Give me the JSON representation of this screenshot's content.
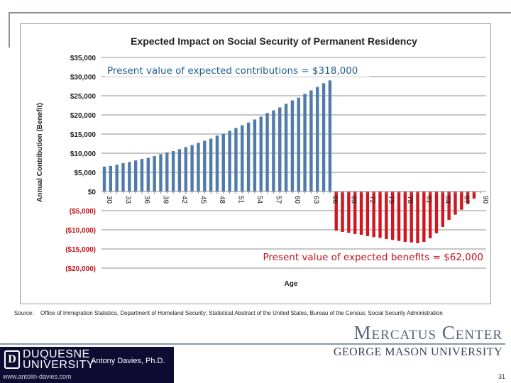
{
  "chart_data": {
    "type": "bar",
    "title": "Expected Impact on Social Security of Permanent Residency",
    "xlabel": "Age",
    "ylabel": "Annual Contribution (Benefit)",
    "ylim": [
      -20000,
      35000
    ],
    "yticks": [
      35000,
      30000,
      25000,
      20000,
      15000,
      10000,
      5000,
      0,
      -5000,
      -10000,
      -15000,
      -20000
    ],
    "ytick_labels": [
      "$35,000",
      "$30,000",
      "$25,000",
      "$20,000",
      "$15,000",
      "$10,000",
      "$5,000",
      "$0",
      "($5,000)",
      "($10,000)",
      "($15,000)",
      "($20,000)"
    ],
    "xtick_labels": [
      "30",
      "33",
      "36",
      "39",
      "42",
      "45",
      "48",
      "51",
      "54",
      "57",
      "60",
      "63",
      "66",
      "69",
      "72",
      "75",
      "78",
      "81",
      "84",
      "87",
      "90"
    ],
    "grid": true,
    "colors": {
      "contributions": "#4f7bab",
      "benefits": "#d0161e"
    },
    "series": [
      {
        "ages": [
          30,
          31,
          32,
          33,
          34,
          35,
          36,
          37,
          38,
          39,
          40,
          41,
          42,
          43,
          44,
          45,
          46,
          47,
          48,
          49,
          50,
          51,
          52,
          53,
          54,
          55,
          56,
          57,
          58,
          59,
          60,
          61,
          62,
          63,
          64,
          65,
          66
        ],
        "values": [
          6500,
          6700,
          7000,
          7400,
          7700,
          8100,
          8500,
          8800,
          9250,
          9750,
          10200,
          10550,
          11050,
          11600,
          12150,
          12700,
          13250,
          13800,
          14600,
          15100,
          15850,
          16600,
          17300,
          18000,
          18800,
          19550,
          20500,
          21200,
          21950,
          22900,
          23800,
          24500,
          25500,
          26400,
          27300,
          28250,
          29000
        ]
      },
      {
        "ages": [
          67,
          68,
          69,
          70,
          71,
          72,
          73,
          74,
          75,
          76,
          77,
          78,
          79,
          80,
          81,
          82,
          83,
          84,
          85,
          86,
          87,
          88,
          89
        ],
        "values": [
          -10200,
          -10550,
          -10800,
          -11100,
          -11300,
          -11650,
          -11900,
          -12100,
          -12400,
          -12650,
          -12900,
          -13150,
          -13300,
          -13500,
          -13150,
          -12200,
          -10900,
          -9250,
          -7400,
          -6050,
          -4750,
          -3270,
          -1850
        ]
      }
    ],
    "annotations": {
      "contributions": "Present value of expected contributions = $318,000",
      "benefits": "Present value of expected benefits = $62,000"
    }
  },
  "source": {
    "label": "Source:",
    "text": "Office of Immigration Statistics, Department of Homeland Security; Statistical Abstract of the United States, Bureau of the Census; Social Security Administration"
  },
  "footer": {
    "mercatus": "Mercatus Center",
    "gmu": "GEORGE MASON UNIVERSITY",
    "duquesne_line1": "DUQUESNE",
    "duquesne_line2": "UNIVERSITY",
    "author": "Antony Davies, Ph.D.",
    "url": "www.antolin-davies.com",
    "page_number": "31"
  }
}
